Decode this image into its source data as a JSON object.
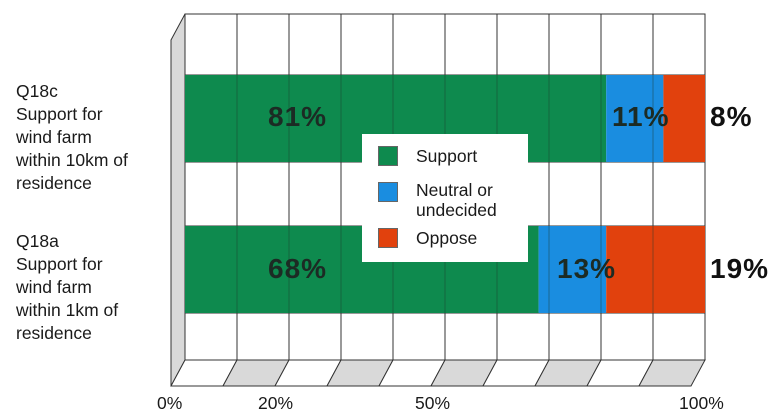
{
  "chart_data": {
    "type": "bar",
    "orientation": "horizontal",
    "stacked": true,
    "categories": [
      [
        "Q18c",
        "Support for",
        "wind farm",
        "within 10km of",
        "residence"
      ],
      [
        "Q18a",
        "Support for",
        "wind farm",
        "within 1km of",
        "residence"
      ]
    ],
    "series": [
      {
        "name": "Support",
        "values": [
          81,
          68
        ],
        "labels": [
          "81%",
          "68%"
        ],
        "color": "#0e8a4e"
      },
      {
        "name": "Neutral or undecided",
        "values": [
          11,
          13
        ],
        "labels": [
          "11%",
          "13%"
        ],
        "color": "#1a8de0"
      },
      {
        "name": "Oppose",
        "values": [
          8,
          19
        ],
        "labels": [
          "8%",
          "19%"
        ],
        "color": "#e1410d"
      }
    ],
    "xticks": [
      "0%",
      "20%",
      "50%",
      "100%"
    ],
    "xlim": [
      0,
      100
    ],
    "grid": true,
    "legend": {
      "position": "center",
      "items": [
        {
          "lines": [
            "Support"
          ],
          "color": "#0e8a4e"
        },
        {
          "lines": [
            "Neutral or",
            "undecided"
          ],
          "color": "#1a8de0"
        },
        {
          "lines": [
            "Oppose"
          ],
          "color": "#e1410d"
        }
      ]
    }
  }
}
